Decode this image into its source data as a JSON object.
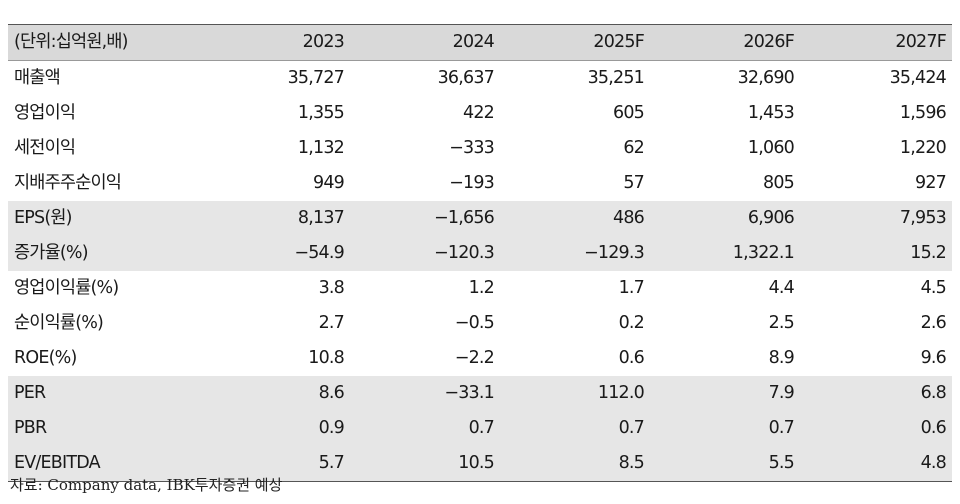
{
  "table": {
    "header": [
      "(단위:십억원,배)",
      "2023",
      "2024",
      "2025F",
      "2026F",
      "2027F"
    ],
    "rows": [
      {
        "label": "매출액",
        "values": [
          "35,727",
          "36,637",
          "35,251",
          "32,690",
          "35,424"
        ]
      },
      {
        "label": "영업이익",
        "values": [
          "1,355",
          "422",
          "605",
          "1,453",
          "1,596"
        ]
      },
      {
        "label": "세전이익",
        "values": [
          "1,132",
          "−333",
          "62",
          "1,060",
          "1,220"
        ]
      },
      {
        "label": "지배주주순이익",
        "values": [
          "949",
          "−193",
          "57",
          "805",
          "927"
        ]
      },
      {
        "label": "EPS(원)",
        "values": [
          "8,137",
          "−1,656",
          "486",
          "6,906",
          "7,953"
        ]
      },
      {
        "label": "증가율(%)",
        "values": [
          "−54.9",
          "−120.3",
          "−129.3",
          "1,322.1",
          "15.2"
        ]
      },
      {
        "label": "영업이익률(%)",
        "values": [
          "3.8",
          "1.2",
          "1.7",
          "4.4",
          "4.5"
        ]
      },
      {
        "label": "순이익률(%)",
        "values": [
          "2.7",
          "−0.5",
          "0.2",
          "2.5",
          "2.6"
        ]
      },
      {
        "label": "ROE(%)",
        "values": [
          "10.8",
          "−2.2",
          "0.6",
          "8.9",
          "9.6"
        ]
      },
      {
        "label": "PER",
        "values": [
          "8.6",
          "−33.1",
          "112.0",
          "7.9",
          "6.8"
        ]
      },
      {
        "label": "PBR",
        "values": [
          "0.9",
          "0.7",
          "0.7",
          "0.7",
          "0.6"
        ]
      },
      {
        "label": "EV/EBITDA",
        "values": [
          "5.7",
          "10.5",
          "8.5",
          "5.5",
          "4.8"
        ]
      }
    ]
  },
  "source": "자료: Company data, IBK투자증권 예상",
  "colors": {
    "header_bg": "#d9d9d9",
    "shaded_row_bg": "#e6e6e6",
    "rule": "#555555"
  }
}
